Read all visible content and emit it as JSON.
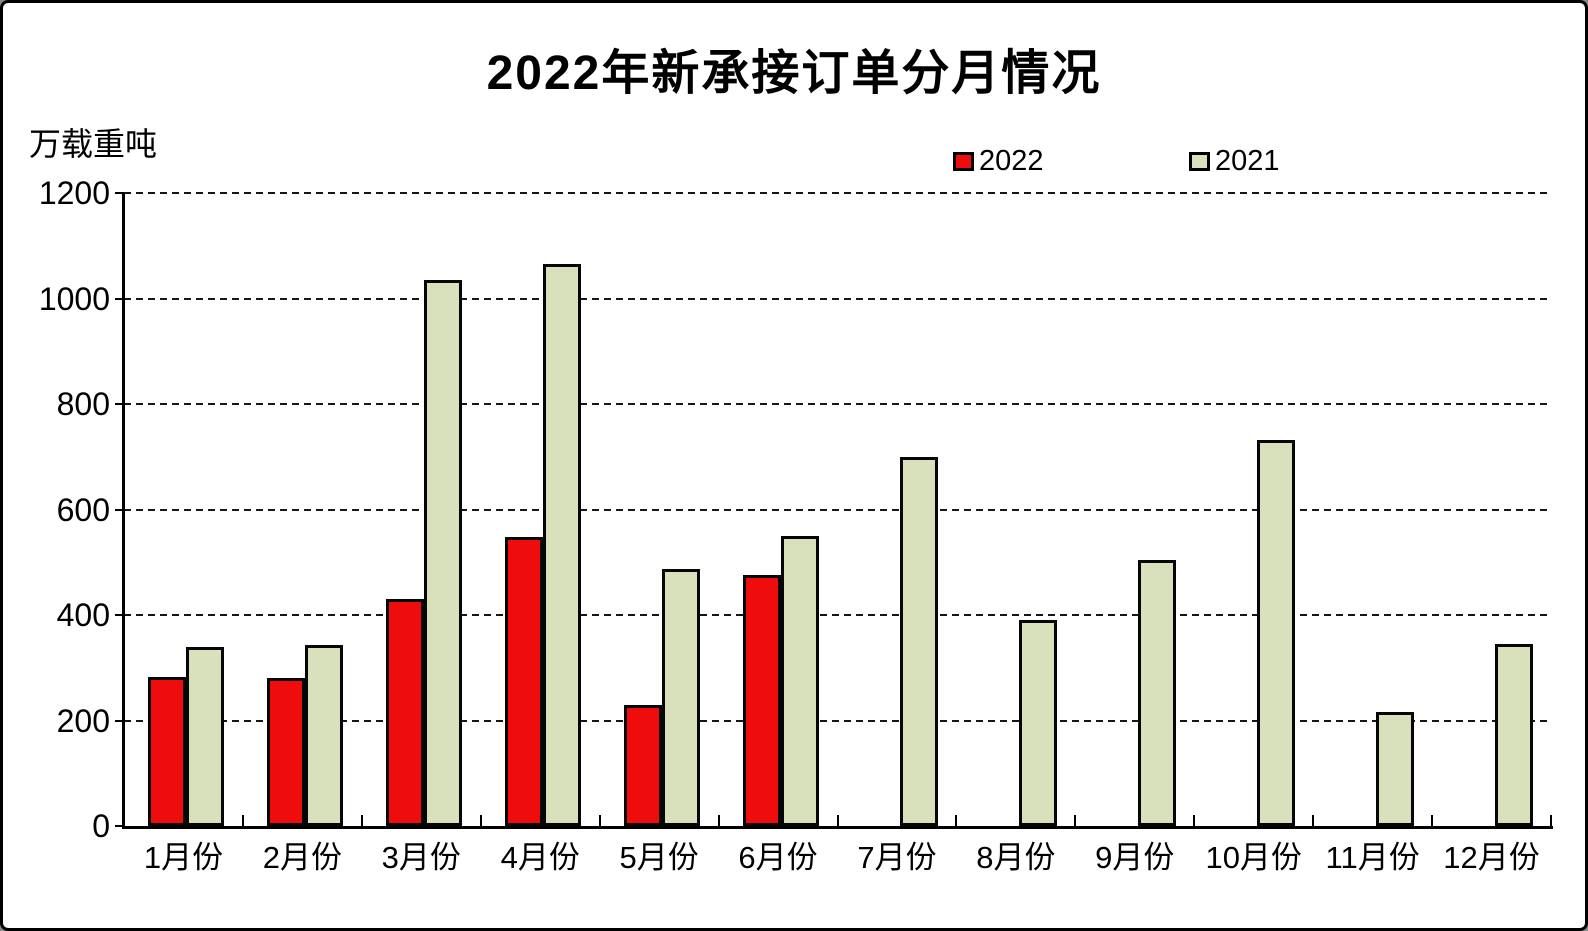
{
  "header": {
    "title": "2022年新承接订单分月情况"
  },
  "axes": {
    "unit_label": "万载重吨",
    "y_ticks": [
      1200,
      1000,
      800,
      600,
      400,
      200,
      0
    ],
    "x_labels": [
      "1月份",
      "2月份",
      "3月份",
      "4月份",
      "5月份",
      "6月份",
      "7月份",
      "8月份",
      "9月份",
      "10月份",
      "11月份",
      "12月份"
    ]
  },
  "legend": {
    "items": [
      {
        "label": "2022",
        "color": "#ee0c0c"
      },
      {
        "label": "2021",
        "color": "#d9e0bc"
      }
    ]
  },
  "colors": {
    "series_2022": "#ee0c0c",
    "series_2021": "#d9e0bc",
    "bar_border": "#060606",
    "grid": "#161616",
    "axis": "#000000",
    "background": "#ffffff",
    "frame_border": "#000000"
  },
  "chart_data": {
    "type": "bar",
    "title": "2022年新承接订单分月情况",
    "xlabel": "",
    "ylabel": "万载重吨",
    "ylim": [
      0,
      1200
    ],
    "ytick_step": 200,
    "grid": "horizontal-dashed",
    "legend_position": "top",
    "categories": [
      "1月份",
      "2月份",
      "3月份",
      "4月份",
      "5月份",
      "6月份",
      "7月份",
      "8月份",
      "9月份",
      "10月份",
      "11月份",
      "12月份"
    ],
    "series": [
      {
        "name": "2022",
        "color": "#ee0c0c",
        "values": [
          282,
          281,
          430,
          548,
          229,
          476,
          null,
          null,
          null,
          null,
          null,
          null
        ]
      },
      {
        "name": "2021",
        "color": "#d9e0bc",
        "values": [
          339,
          343,
          1036,
          1066,
          487,
          549,
          699,
          390,
          504,
          732,
          217,
          345
        ]
      }
    ]
  }
}
